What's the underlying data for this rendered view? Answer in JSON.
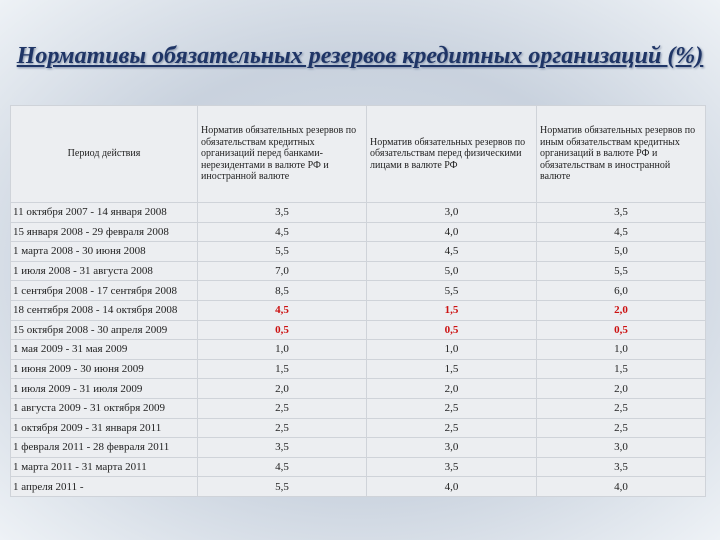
{
  "header": {
    "title": "Нормативы обязательных резервов кредитных организаций (%)"
  },
  "table": {
    "columns": [
      "Период действия",
      "Норматив обязательных резервов по обязательствам кредитных организаций перед банками-нерезидентами в валюте РФ и иностранной валюте",
      "Норматив обязательных резервов по обязательствам перед физическими лицами в валюте РФ",
      "Норматив обязательных резервов по иным обязательствам кредитных организаций в валюте РФ и обязательствам в иностранной валюте"
    ],
    "rows": [
      [
        "11 октября 2007 - 14 января 2008",
        "3,5",
        "3,0",
        "3,5"
      ],
      [
        "15 января 2008 - 29 февраля 2008",
        "4,5",
        "4,0",
        "4,5"
      ],
      [
        "1 марта 2008 - 30 июня 2008",
        "5,5",
        "4,5",
        "5,0"
      ],
      [
        "1 июля 2008 - 31 августа 2008",
        "7,0",
        "5,0",
        "5,5"
      ],
      [
        "1 сентября 2008 - 17 сентября 2008",
        "8,5",
        "5,5",
        "6,0"
      ],
      [
        "18 сентября 2008 - 14 октября 2008",
        "4,5",
        "1,5",
        "2,0"
      ],
      [
        "15 октября 2008 - 30 апреля 2009",
        "0,5",
        "0,5",
        "0,5"
      ],
      [
        "1 мая 2009 - 31 мая 2009",
        "1,0",
        "1,0",
        "1,0"
      ],
      [
        "1 июня 2009 - 30 июня 2009",
        "1,5",
        "1,5",
        "1,5"
      ],
      [
        "1 июля 2009 - 31 июля 2009",
        "2,0",
        "2,0",
        "2,0"
      ],
      [
        "1 августа 2009 - 31 октября 2009",
        "2,5",
        "2,5",
        "2,5"
      ],
      [
        "1 октября 2009 - 31 января 2011",
        "2,5",
        "2,5",
        "2,5"
      ],
      [
        "1 февраля 2011 - 28 февраля 2011",
        "3,5",
        "3,0",
        "3,0"
      ],
      [
        "1 марта 2011 - 31 марта 2011",
        "4,5",
        "3,5",
        "3,5"
      ],
      [
        "1 апреля 2011 -",
        "5,5",
        "4,0",
        "4,0"
      ]
    ],
    "highlighted_rows": [
      5,
      6
    ],
    "highlight_color": "#cc1111"
  }
}
